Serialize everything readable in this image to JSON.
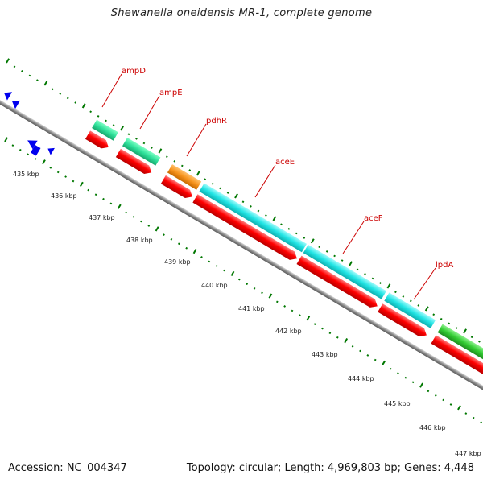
{
  "title": "Shewanella oneidensis MR-1, complete genome",
  "footer": {
    "accession": "Accession: NC_004347",
    "topology": "Topology: circular; Length: 4,969,803 bp; Genes: 4,448"
  },
  "genes": [
    {
      "label": "ampD",
      "color": "#2fe09a"
    },
    {
      "label": "ampE",
      "color": "#2fe09a"
    },
    {
      "label": "pdhR",
      "color": "#f7941d"
    },
    {
      "label": "aceE",
      "color": "#22e5e5"
    },
    {
      "label": "aceF",
      "color": "#22e5e5"
    },
    {
      "label": "lpdA",
      "color": "#33cc33"
    }
  ],
  "scale_labels": [
    "435 kbp",
    "436 kbp",
    "437 kbp",
    "438 kbp",
    "439 kbp",
    "440 kbp",
    "441 kbp",
    "442 kbp",
    "443 kbp",
    "444 kbp",
    "445 kbp",
    "446 kbp",
    "447 kbp"
  ],
  "colors": {
    "cds": "#ff0000",
    "other_feature": "#0000ee",
    "backbone": "#888888",
    "ticks": "#007700",
    "gene_label": "#cc0000"
  }
}
